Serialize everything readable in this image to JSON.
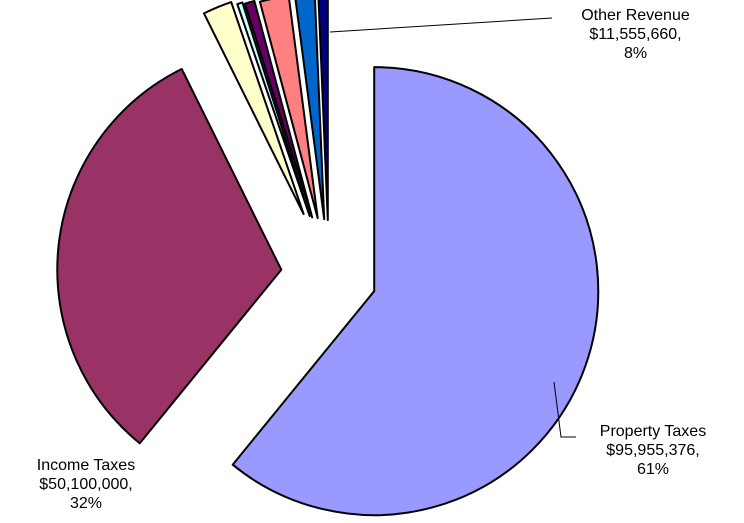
{
  "chart_data": {
    "type": "pie",
    "slices": [
      {
        "label": "Property Taxes",
        "value": 95955376,
        "value_text": "$95,955,376,",
        "percent_text": "61%",
        "color": "#9999FF"
      },
      {
        "label": "Income Taxes",
        "value": 50100000,
        "value_text": "$50,100,000,",
        "percent_text": "32%",
        "color": "#993366"
      },
      {
        "label": "",
        "value": 3300000,
        "color": "#FFFFCC"
      },
      {
        "label": "",
        "value": 600000,
        "color": "#CCFFFF"
      },
      {
        "label": "",
        "value": 1100000,
        "color": "#660066"
      },
      {
        "label": "",
        "value": 3300000,
        "color": "#FF8080"
      },
      {
        "label": "",
        "value": 2200000,
        "color": "#0066CC"
      },
      {
        "label": "",
        "value": 1055660,
        "color": "#000080"
      }
    ],
    "grouped_slice": {
      "label": "Other Revenue",
      "value": 11555660,
      "value_text": "$11,555,660,",
      "percent_text": "8%"
    },
    "legend": "none"
  }
}
